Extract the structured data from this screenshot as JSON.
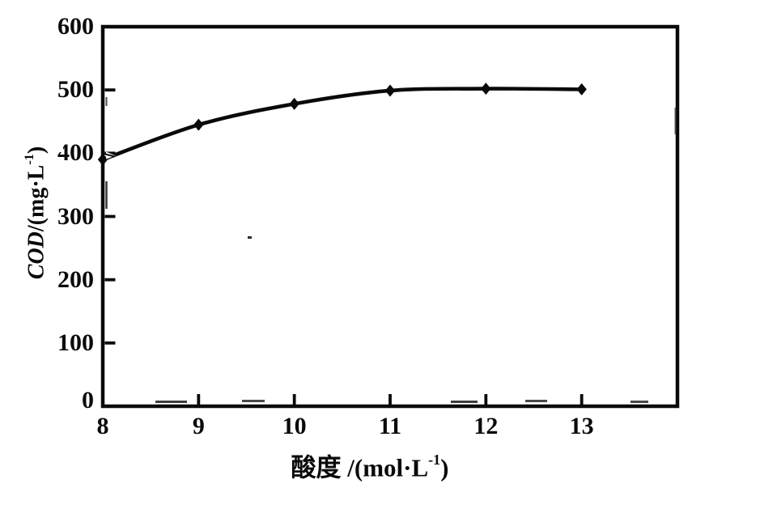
{
  "figure": {
    "background": "#ffffff",
    "ink_color": "#0a0a0a",
    "title": ""
  },
  "chart_data": {
    "type": "line",
    "title": "",
    "x": [
      8,
      9,
      10,
      11,
      12,
      13
    ],
    "series": [
      {
        "name": "COD",
        "values": [
          390,
          445,
          478,
          499,
          502,
          501
        ]
      }
    ],
    "xlabel": "酸度/(mol·L⁻¹)",
    "ylabel": "COD/(mg·L⁻¹)",
    "xlim": [
      8,
      14
    ],
    "ylim": [
      0,
      600
    ],
    "x_tick_values": [
      8,
      9,
      10,
      11,
      12,
      13
    ],
    "x_tick_labels": [
      "8",
      "9",
      "10",
      "11",
      "12",
      "13"
    ],
    "y_tick_values": [
      0,
      100,
      200,
      300,
      400,
      500,
      600
    ],
    "y_tick_labels": [
      "0",
      "100",
      "200",
      "300",
      "400",
      "500",
      "600"
    ],
    "marker": "diamond",
    "line_color": "#0a0a0a",
    "grid": false,
    "legend_position": "none"
  },
  "x_axis_label": {
    "text": "酸度 /(mol·L",
    "sup": "-1",
    "suffix": ")"
  },
  "y_axis_label": {
    "italic": "COD",
    "mid": "/(mg·L",
    "sup": "-1",
    "suffix": ")"
  }
}
